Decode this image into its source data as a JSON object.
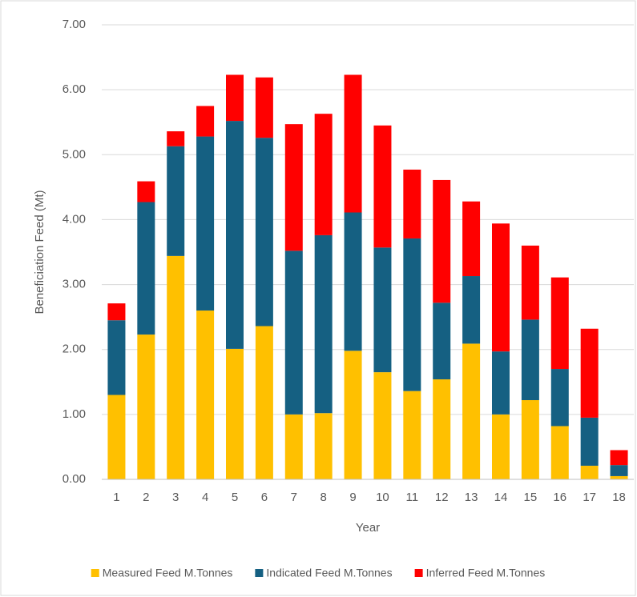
{
  "chart_data": {
    "type": "stacked-bar",
    "y_label": "Beneficiation Feed (Mt)",
    "x_label": "Year",
    "categories": [
      "1",
      "2",
      "3",
      "4",
      "5",
      "6",
      "7",
      "8",
      "9",
      "10",
      "11",
      "12",
      "13",
      "14",
      "15",
      "16",
      "17",
      "18"
    ],
    "series": [
      {
        "name": "Measured Feed M.Tonnes",
        "color": "#FFC000",
        "values": [
          1.3,
          2.23,
          3.44,
          2.6,
          2.01,
          2.36,
          1.0,
          1.02,
          1.98,
          1.65,
          1.36,
          1.54,
          2.09,
          1.0,
          1.22,
          0.82,
          0.21,
          0.05
        ]
      },
      {
        "name": "Indicated Feed M.Tonnes",
        "color": "#156082",
        "values": [
          1.15,
          2.04,
          1.69,
          2.68,
          3.51,
          2.9,
          2.52,
          2.74,
          2.13,
          1.92,
          2.35,
          1.18,
          1.04,
          0.97,
          1.24,
          0.88,
          0.74,
          0.17
        ]
      },
      {
        "name": "Inferred Feed M.Tonnes",
        "color": "#FF0000",
        "values": [
          0.26,
          0.32,
          0.23,
          0.47,
          0.71,
          0.93,
          1.95,
          1.87,
          2.12,
          1.88,
          1.06,
          1.89,
          1.15,
          1.97,
          1.14,
          1.41,
          1.37,
          0.23
        ]
      }
    ],
    "ylim": [
      0,
      7
    ],
    "yticks": [
      {
        "value": 0,
        "label": "0.00"
      },
      {
        "value": 1,
        "label": "1.00"
      },
      {
        "value": 2,
        "label": "2.00"
      },
      {
        "value": 3,
        "label": "3.00"
      },
      {
        "value": 4,
        "label": "4.00"
      },
      {
        "value": 5,
        "label": "5.00"
      },
      {
        "value": 6,
        "label": "6.00"
      },
      {
        "value": 7,
        "label": "7.00"
      }
    ],
    "grid": true,
    "legend": "bottom"
  }
}
